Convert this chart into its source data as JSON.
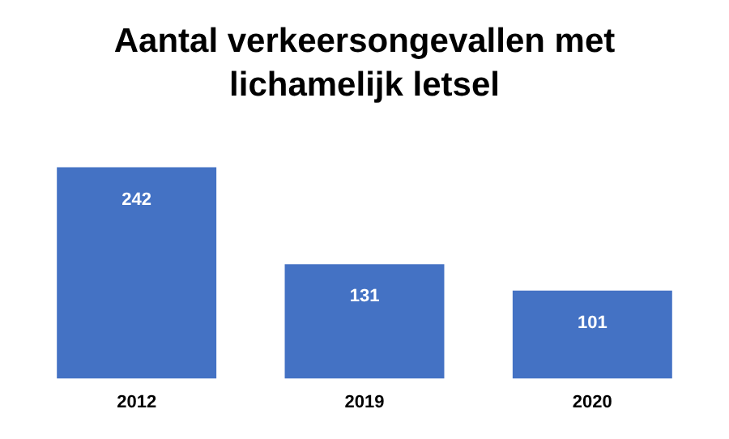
{
  "chart_data": {
    "type": "bar",
    "title": "Aantal verkeersongevallen met lichamelijk letsel",
    "categories": [
      "2012",
      "2019",
      "2020"
    ],
    "values": [
      242,
      131,
      101
    ],
    "color": "#4472c4",
    "data_labels": true,
    "grid": false,
    "legend": false
  }
}
